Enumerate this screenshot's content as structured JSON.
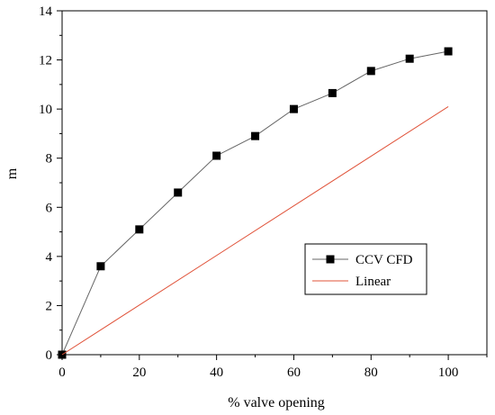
{
  "chart_data": {
    "type": "line",
    "xlabel": "% valve opening",
    "ylabel": "m",
    "xlim": [
      0,
      110
    ],
    "ylim": [
      0,
      14
    ],
    "xticks": [
      0,
      20,
      40,
      60,
      80,
      100
    ],
    "yticks": [
      0,
      2,
      4,
      6,
      8,
      10,
      12,
      14
    ],
    "grid": false,
    "legend_position": "lower-right",
    "series": [
      {
        "name": "CCV CFD",
        "color": "#000000",
        "marker": "square",
        "x": [
          0,
          10,
          20,
          30,
          40,
          50,
          60,
          70,
          80,
          90,
          100
        ],
        "y": [
          0,
          3.6,
          5.1,
          6.6,
          8.1,
          8.9,
          10.0,
          10.65,
          11.55,
          12.05,
          12.35
        ]
      },
      {
        "name": "Linear",
        "color": "#e0533a",
        "marker": "none",
        "x": [
          0,
          100
        ],
        "y": [
          0,
          10.1
        ]
      }
    ]
  }
}
